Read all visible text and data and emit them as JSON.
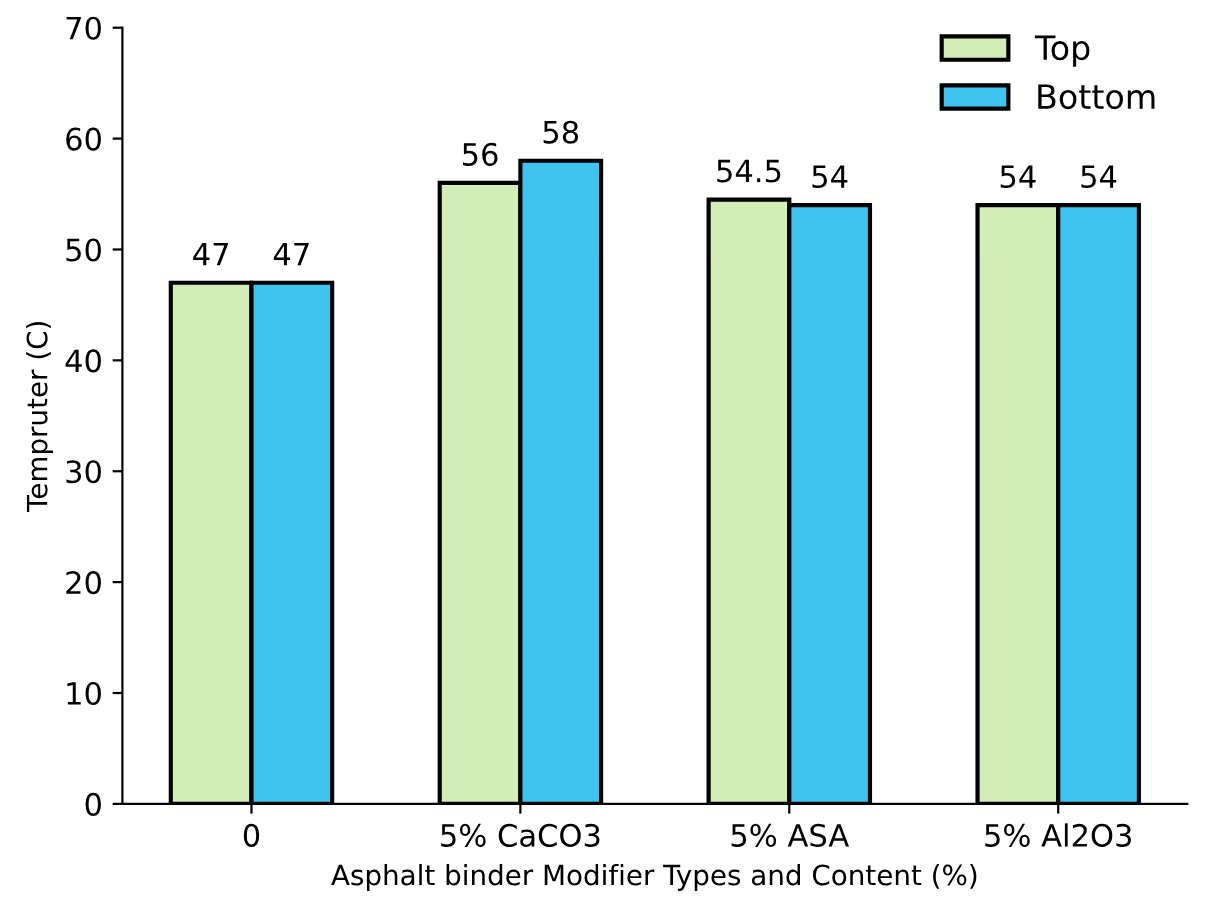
{
  "chart_data": {
    "type": "bar",
    "xlabel": "Asphalt binder Modifier Types and Content (%)",
    "ylabel": "Tempruter (C)",
    "categories": [
      "0",
      "5% CaCO3",
      "5% ASA",
      "5% Al2O3"
    ],
    "series": [
      {
        "name": "Top",
        "color": "#d3edb8",
        "values": [
          47,
          56,
          54.5,
          54
        ]
      },
      {
        "name": "Bottom",
        "color": "#3fc4ef",
        "values": [
          47,
          58,
          54,
          54
        ]
      }
    ],
    "ylim": [
      0,
      70
    ],
    "yticks": [
      0,
      10,
      20,
      30,
      40,
      50,
      60,
      70
    ],
    "grid": false,
    "legend": "top right",
    "data_labels": true
  }
}
